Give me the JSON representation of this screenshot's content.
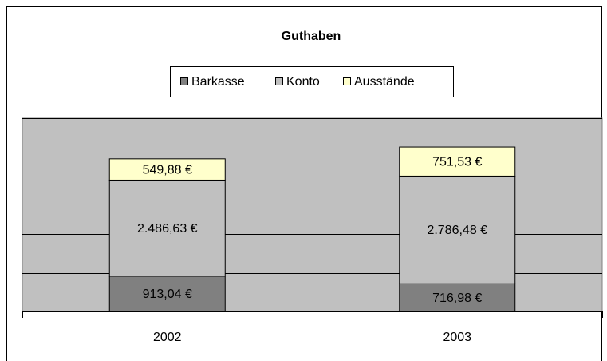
{
  "chart_data": {
    "type": "stacked_bar",
    "title": "Guthaben",
    "categories": [
      "2002",
      "2003"
    ],
    "series": [
      {
        "name": "Barkasse",
        "color": "#808080",
        "values": [
          913.04,
          716.98
        ],
        "value_labels": [
          "913,04 €",
          "716,98 €"
        ]
      },
      {
        "name": "Konto",
        "color": "#c0c0c0",
        "values": [
          2486.63,
          2786.48
        ],
        "value_labels": [
          "2.486,63 €",
          "2.786,48 €"
        ]
      },
      {
        "name": "Ausstände",
        "color": "#ffffcc",
        "values": [
          549.88,
          751.53
        ],
        "value_labels": [
          "549,88 €",
          "751,53 €"
        ]
      }
    ],
    "ylim": [
      0,
      5000
    ],
    "yticks": [
      0,
      1000,
      2000,
      3000,
      4000,
      5000
    ],
    "grid": true,
    "legend": "top"
  }
}
